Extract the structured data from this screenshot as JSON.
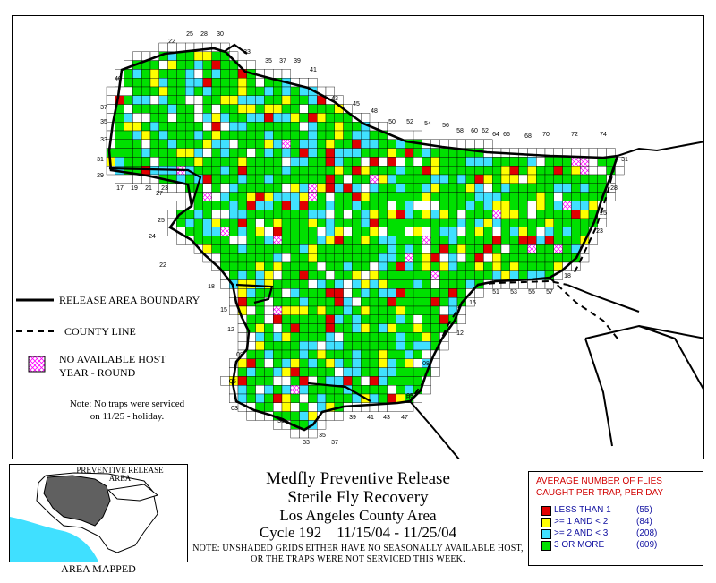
{
  "title": {
    "line1": "Medfly Preventive Release",
    "line2": "Sterile Fly Recovery",
    "line3": "Los Angeles County Area",
    "line4": "Cycle 192    11/15/04 - 11/25/04",
    "note": "NOTE: UNSHADED GRIDS EITHER HAVE NO SEASONALLY AVAILABLE HOST, OR THE TRAPS WERE NOT SERVICED THIS WEEK."
  },
  "legend": {
    "release_boundary": "RELEASE AREA BOUNDARY",
    "county_line": "COUNTY LINE",
    "no_host_line1": "NO AVAILABLE HOST",
    "no_host_line2": "YEAR - ROUND",
    "service_note_line1": "Note: No traps were serviced",
    "service_note_line2": "on 11/25 - holiday."
  },
  "flies_legend": {
    "header_line1": "AVERAGE NUMBER OF FLIES",
    "header_line2": "CAUGHT PER TRAP, PER DAY",
    "items": [
      {
        "label": "LESS THAN 1",
        "count": "(55)",
        "color": "#e00000"
      },
      {
        "label": ">= 1 AND < 2",
        "count": "(84)",
        "color": "#ffff00"
      },
      {
        "label": ">= 2 AND < 3",
        "count": "(208)",
        "color": "#40e0ff"
      },
      {
        "label": "3 OR MORE",
        "count": "(609)",
        "color": "#00e000"
      }
    ]
  },
  "inset": {
    "label_line1": "PREVENTIVE RELEASE",
    "label_line2": "AREA",
    "caption": "AREA MAPPED"
  },
  "grid_labels": {
    "top": [
      "22",
      "25",
      "28",
      "30",
      "33",
      "35",
      "37",
      "39",
      "41",
      "43",
      "45",
      "48",
      "50",
      "52",
      "54",
      "56",
      "58",
      "60",
      "62",
      "64",
      "66",
      "68",
      "70",
      "72",
      "74"
    ],
    "left": [
      "40",
      "37",
      "35",
      "33",
      "31",
      "29",
      "27",
      "25",
      "24",
      "22",
      "18",
      "15",
      "12",
      "08",
      "05",
      "03"
    ],
    "right": [
      "31",
      "28",
      "25",
      "23",
      "18",
      "15",
      "12",
      "08",
      "05"
    ],
    "bottom": [
      "17",
      "19",
      "21",
      "23",
      "30",
      "33",
      "35",
      "37",
      "39",
      "41",
      "43",
      "47",
      "51",
      "53",
      "55",
      "57",
      "02"
    ]
  },
  "colors": {
    "red": "#e00000",
    "yellow": "#ffff00",
    "cyan": "#40e0ff",
    "green": "#00e000",
    "no_host": "#ff00ff",
    "legend_header": "#d00000",
    "legend_text": "#1010a0",
    "ocean": "#40e0ff",
    "inset_area": "#606060"
  }
}
